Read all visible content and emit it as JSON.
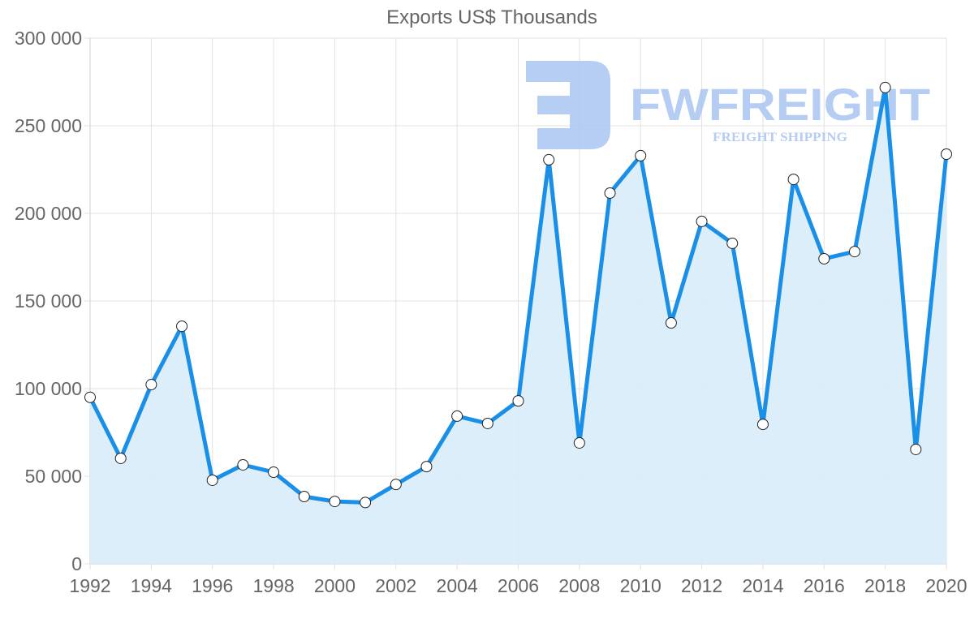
{
  "chart_data": {
    "type": "line",
    "title": "Exports US$ Thousands",
    "xlabel": "",
    "ylabel": "",
    "x": [
      1992,
      1993,
      1994,
      1995,
      1996,
      1997,
      1998,
      1999,
      2000,
      2001,
      2002,
      2003,
      2004,
      2005,
      2006,
      2007,
      2008,
      2009,
      2010,
      2011,
      2012,
      2013,
      2014,
      2015,
      2016,
      2017,
      2018,
      2019,
      2020
    ],
    "series": [
      {
        "name": "Exports US$ Thousands",
        "values": [
          95000,
          60200,
          102300,
          135600,
          47700,
          56500,
          52300,
          38400,
          35600,
          35000,
          45300,
          55500,
          84300,
          80100,
          93000,
          230600,
          69000,
          211600,
          232900,
          137500,
          195400,
          182900,
          79600,
          219400,
          174100,
          178200,
          271800,
          65300,
          233800
        ],
        "color": "#1a8fe8",
        "fill": "#d9ecfb",
        "marker": "circle"
      }
    ],
    "xticks": [
      "1992",
      "1994",
      "1996",
      "1998",
      "2000",
      "2002",
      "2004",
      "2006",
      "2008",
      "2010",
      "2012",
      "2014",
      "2016",
      "2018",
      "2020"
    ],
    "yticks": [
      "0",
      "50 000",
      "100 000",
      "150 000",
      "200 000",
      "250 000",
      "300 000"
    ],
    "ylim": [
      0,
      300000
    ],
    "xlim": [
      1992,
      2020
    ],
    "grid": true,
    "legend": "none",
    "area_fill": true
  },
  "watermark": {
    "brand": "FWFREIGHT",
    "tagline": "FREIGHT SHIPPING"
  }
}
